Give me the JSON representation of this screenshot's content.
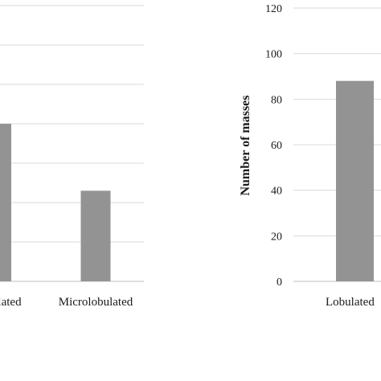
{
  "colors": {
    "bar": "#939393",
    "grid": "#d9d9d9",
    "axis": "#bfbfbf"
  },
  "chart_data": [
    {
      "type": "bar",
      "title": "",
      "xlabel": "",
      "ylabel": "",
      "grid": true,
      "categories": [
        "...lated",
        "Microlobulated"
      ],
      "values": [
        40,
        23
      ],
      "ylim": [
        0,
        70
      ],
      "gridlines": [
        0,
        10,
        20,
        30,
        40,
        50,
        60,
        70
      ]
    },
    {
      "type": "bar",
      "title": "",
      "xlabel": "",
      "ylabel": "Number of masses",
      "grid": true,
      "categories": [
        "Lobulate..."
      ],
      "values": [
        88
      ],
      "ylim": [
        0,
        120
      ],
      "yticks": [
        "0",
        "20",
        "40",
        "60",
        "80",
        "100",
        "120"
      ]
    }
  ],
  "display": {
    "left_cat_0": "lated",
    "left_cat_1": "Microlobulated",
    "right_cat_0": "Lobulated",
    "right_ylabel": "Number of masses"
  }
}
